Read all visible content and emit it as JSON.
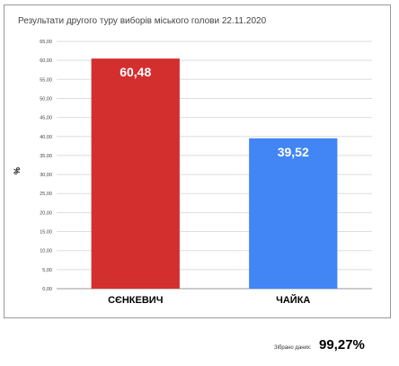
{
  "chart_data": {
    "type": "bar",
    "title": "Результати другого туру виборів міського голови 22.11.2020",
    "ylabel": "%",
    "xlabel": "",
    "ylim": [
      0,
      65
    ],
    "yticks": [
      "0,00",
      "5,00",
      "10,00",
      "15,00",
      "20,00",
      "25,00",
      "30,00",
      "35,00",
      "40,00",
      "45,00",
      "50,00",
      "55,00",
      "60,00",
      "65,00"
    ],
    "grid": true,
    "categories": [
      "СЄНКЕВИЧ",
      "ЧАЙКА"
    ],
    "values": [
      60.48,
      39.52
    ],
    "value_labels": [
      "60,48",
      "39,52"
    ],
    "colors": [
      "#d32f2f",
      "#4285f4"
    ]
  },
  "footer": {
    "label": "Зібрано даних:",
    "value": "99,27%"
  }
}
